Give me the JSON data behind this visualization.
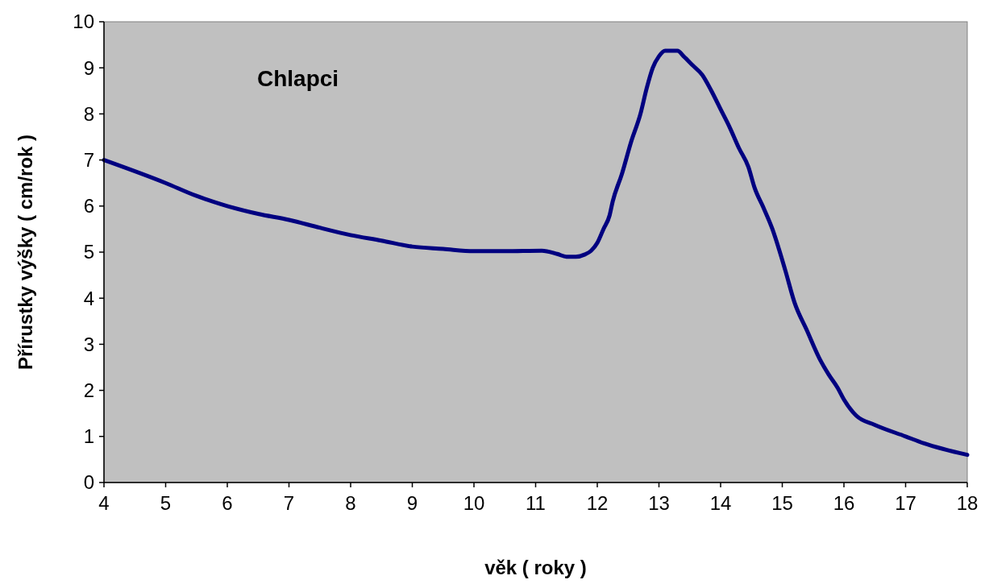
{
  "chart_data": {
    "type": "line",
    "xlabel": "věk ( roky )",
    "ylabel": "Přírustky výšky ( cm/rok )",
    "annotations": [
      "Chlapci"
    ],
    "xlim": [
      4,
      18
    ],
    "xticks": [
      4,
      5,
      6,
      7,
      8,
      9,
      10,
      11,
      12,
      13,
      14,
      15,
      16,
      17,
      18
    ],
    "ylim": [
      0,
      10
    ],
    "yticks": [
      0,
      1,
      2,
      3,
      4,
      5,
      6,
      7,
      8,
      9,
      10
    ],
    "grid": false,
    "marker": "none",
    "line_style": "solid",
    "series": [
      {
        "color": "#000080",
        "x": [
          4,
          5,
          5.5,
          6,
          6.5,
          7,
          7.5,
          8,
          8.5,
          9,
          9.5,
          10,
          10.5,
          11.1,
          11.35,
          11.5,
          11.65,
          11.8,
          11.9,
          12,
          12.1,
          12.2,
          12.25,
          12.4,
          12.55,
          12.7,
          12.8,
          12.9,
          13,
          13.1,
          13.3,
          13.4,
          13.55,
          13.7,
          13.85,
          14,
          14.15,
          14.3,
          14.45,
          14.55,
          14.7,
          14.84,
          14.95,
          15.05,
          15.2,
          15.4,
          15.6,
          15.75,
          15.9,
          16,
          16.2,
          16.5,
          17,
          17.3,
          18
        ],
        "values": [
          7,
          6.5,
          6.22,
          6,
          5.83,
          5.7,
          5.53,
          5.37,
          5.25,
          5.12,
          5.07,
          5.02,
          5.02,
          5.03,
          4.96,
          4.9,
          4.9,
          4.95,
          5.03,
          5.2,
          5.5,
          5.8,
          6.1,
          6.7,
          7.4,
          8,
          8.55,
          9,
          9.25,
          9.37,
          9.37,
          9.25,
          9.05,
          8.85,
          8.5,
          8.1,
          7.7,
          7.25,
          6.85,
          6.4,
          5.95,
          5.5,
          5.05,
          4.6,
          3.9,
          3.3,
          2.7,
          2.35,
          2.05,
          1.8,
          1.45,
          1.25,
          1,
          0.85,
          0.6
        ]
      }
    ]
  }
}
